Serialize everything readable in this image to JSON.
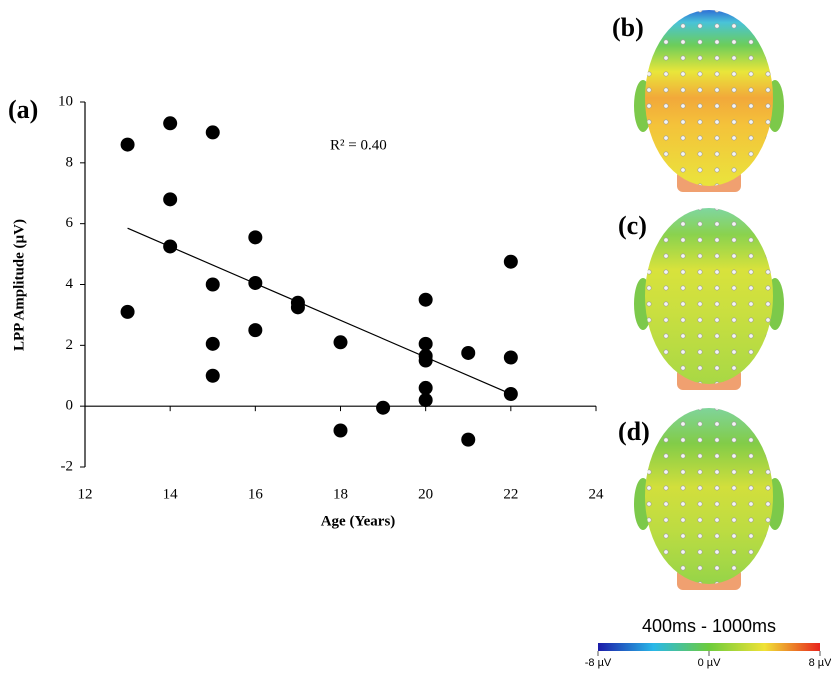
{
  "chart_data": {
    "type": "scatter",
    "panel_label": "(a)",
    "annotation": "R² = 0.40",
    "xlabel": "Age (Years)",
    "ylabel": "LPP Amplitude (µV)",
    "x": [
      13,
      13,
      14,
      14,
      14,
      15,
      15,
      15,
      15,
      16,
      16,
      16,
      17,
      17,
      18,
      18,
      19,
      20,
      20,
      20,
      20,
      20,
      20,
      21,
      21,
      22,
      22,
      22
    ],
    "values": [
      8.6,
      3.1,
      9.3,
      6.8,
      5.25,
      9.0,
      4.0,
      2.05,
      1.0,
      5.55,
      4.05,
      2.5,
      3.4,
      3.25,
      2.1,
      -0.8,
      -0.05,
      3.5,
      2.05,
      1.65,
      1.5,
      0.6,
      0.2,
      1.75,
      -1.1,
      4.75,
      1.6,
      0.4
    ],
    "color": "#000000",
    "trendline": {
      "x": [
        13,
        22
      ],
      "values": [
        5.85,
        0.4
      ]
    },
    "xlim": [
      12,
      24
    ],
    "ylim": [
      -2,
      10
    ],
    "xticks": [
      12,
      14,
      16,
      18,
      20,
      22,
      24
    ],
    "yticks": [
      -2,
      0,
      2,
      4,
      6,
      8,
      10
    ]
  },
  "topomaps": {
    "panels": [
      {
        "label": "(b)"
      },
      {
        "label": "(c)"
      },
      {
        "label": "(d)"
      }
    ],
    "colorbar": {
      "title": "400ms - 1000ms",
      "range": [
        -8,
        8
      ],
      "ticks": [
        {
          "value": -8,
          "label": "-8 µV"
        },
        {
          "value": 0,
          "label": "0 µV"
        },
        {
          "value": 8,
          "label": "8 µV"
        }
      ]
    }
  }
}
